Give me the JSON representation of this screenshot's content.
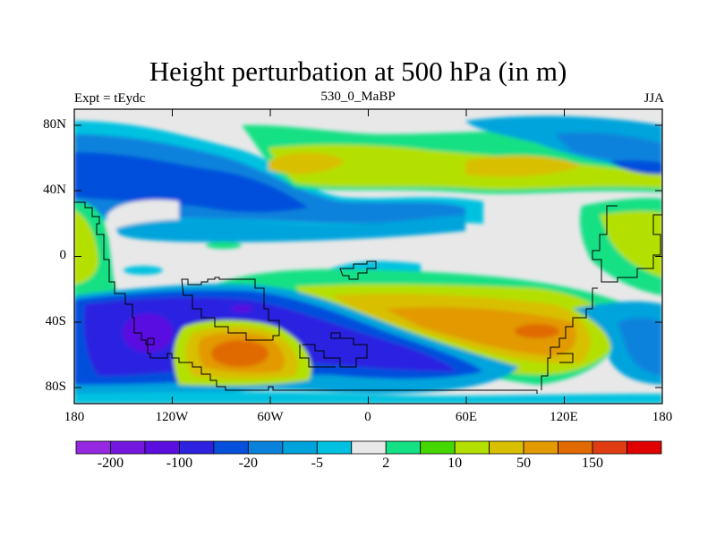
{
  "title": "Height perturbation at 500 hPa (in m)",
  "left_string": "Expt = tEydc",
  "center_string": "530_0_MaBP",
  "right_string": "JJA",
  "chart_data": {
    "type": "contour-map",
    "title": "Height perturbation at 500 hPa (in m)",
    "units": "m",
    "lon_range": [
      -180,
      180
    ],
    "lat_range": [
      -90,
      90
    ],
    "x_ticks": [
      "180",
      "120W",
      "60W",
      "0",
      "60E",
      "120E",
      "180"
    ],
    "y_ticks": [
      "80N",
      "40N",
      "0",
      "40S",
      "80S"
    ],
    "colorbar": {
      "levels": [
        -200,
        -150,
        -100,
        -50,
        -20,
        -10,
        -5,
        -2,
        2,
        5,
        10,
        20,
        50,
        100,
        150,
        200
      ],
      "labels": [
        "-200",
        "-100",
        "-20",
        "-5",
        "2",
        "10",
        "50",
        "150"
      ],
      "colors": [
        "#9628e2",
        "#7418e0",
        "#5a0ee0",
        "#2c22e0",
        "#0650dc",
        "#0a82dc",
        "#00a4dc",
        "#00c2e0",
        "#e8e8e8",
        "#14e084",
        "#44d800",
        "#b4e000",
        "#d8c000",
        "#e29a00",
        "#e06a00",
        "#e03c14",
        "#e00000"
      ]
    }
  }
}
